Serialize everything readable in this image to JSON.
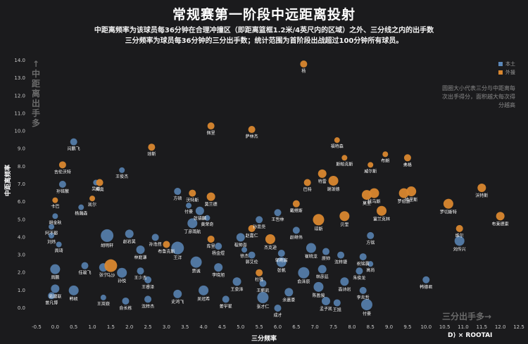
{
  "title": "常规赛第一阶段中远距离投射",
  "subtitle_line1": "中距离频率为该球员每36分钟在合理冲撞区（即距离篮框1.2米/4英尺内的区域）之外、三分线之内的出手数",
  "subtitle_line2": "三分频率为球员每36分钟的三分出手数；统计范围为首阶段出战超过100分钟所有球员。",
  "note": "圆圈大小代表三分与中距离每次出手得分，面积越大每次得分越高",
  "y_arrow": "↑中距离出手多",
  "x_arrow": "三分出手多→",
  "brand": "D⟩ × ROOTAI",
  "colors": {
    "local": "#5b87b8",
    "foreign": "#d9872f",
    "background": "#1b1b1d"
  },
  "chart_data": {
    "type": "scatter",
    "title": "常规赛第一阶段中远距离投射",
    "xlabel": "三分频率",
    "ylabel": "中距离频率",
    "xlim": [
      -0.5,
      12.5
    ],
    "ylim": [
      0,
      14
    ],
    "x_ticks": [
      "-0.5",
      "0.0",
      "0.5",
      "1.0",
      "1.5",
      "2.0",
      "2.5",
      "3.0",
      "3.5",
      "4.0",
      "4.5",
      "5.0",
      "5.5",
      "6.0",
      "6.5",
      "7.0",
      "7.5",
      "8.0",
      "8.5",
      "9.0",
      "9.5",
      "10.0",
      "10.5",
      "11.0",
      "11.5",
      "12.0",
      "12.5"
    ],
    "y_ticks": [
      "0.0",
      "1.0",
      "2.0",
      "3.0",
      "4.0",
      "5.0",
      "6.0",
      "7.0",
      "8.0",
      "9.0",
      "10.0",
      "11.0",
      "12.0",
      "13.0",
      "14.0"
    ],
    "legend_position": "top-right",
    "series": [
      {
        "name": "本土",
        "color": "#5b87b8",
        "points": [
          {
            "label": "闫鹏飞",
            "x": 0.5,
            "y": 9.4,
            "s": 5
          },
          {
            "label": "王俊杰",
            "x": 1.8,
            "y": 7.8,
            "s": 4
          },
          {
            "label": "孙铭徽",
            "x": 0.2,
            "y": 7.0,
            "s": 5
          },
          {
            "label": "吴前",
            "x": 1.1,
            "y": 7.1,
            "s": 4
          },
          {
            "label": "杨瀚森",
            "x": 0.7,
            "y": 5.7,
            "s": 4
          },
          {
            "label": "胡金秋",
            "x": 0.0,
            "y": 5.2,
            "s": 4
          },
          {
            "label": "阿不都",
            "x": -0.1,
            "y": 4.6,
            "s": 4
          },
          {
            "label": "刘炜",
            "x": -0.1,
            "y": 4.1,
            "s": 4
          },
          {
            "label": "周琦",
            "x": 0.1,
            "y": 3.6,
            "s": 4
          },
          {
            "label": "胡明轩",
            "x": 1.4,
            "y": 4.1,
            "s": 9
          },
          {
            "label": "赵岩昊",
            "x": 2.0,
            "y": 4.2,
            "s": 6
          },
          {
            "label": "孙浩然",
            "x": 2.7,
            "y": 4.0,
            "s": 5
          },
          {
            "label": "方硕",
            "x": 3.3,
            "y": 6.6,
            "s": 5
          },
          {
            "label": "付豪",
            "x": 3.6,
            "y": 5.8,
            "s": 4
          },
          {
            "label": "张镇麟",
            "x": 3.9,
            "y": 5.5,
            "s": 6
          },
          {
            "label": "黄荣奇",
            "x": 4.1,
            "y": 5.1,
            "s": 4
          },
          {
            "label": "丁彦雨航",
            "x": 3.7,
            "y": 4.8,
            "s": 7
          },
          {
            "label": "孙思尧",
            "x": 5.5,
            "y": 5.0,
            "s": 5
          },
          {
            "label": "程帅澎",
            "x": 5.0,
            "y": 4.0,
            "s": 6
          },
          {
            "label": "王哲林",
            "x": 6.0,
            "y": 5.4,
            "s": 5
          },
          {
            "label": "赵继伟",
            "x": 6.5,
            "y": 4.4,
            "s": 5
          },
          {
            "label": "徐杰",
            "x": 5.1,
            "y": 3.3,
            "s": 4
          },
          {
            "label": "郭艾伦",
            "x": 5.3,
            "y": 3.0,
            "s": 5
          },
          {
            "label": "邹雨宸",
            "x": 6.1,
            "y": 3.1,
            "s": 5
          },
          {
            "label": "崔晓龙",
            "x": 6.9,
            "y": 3.4,
            "s": 7
          },
          {
            "label": "原帅",
            "x": 7.3,
            "y": 3.2,
            "s": 5
          },
          {
            "label": "沈梓捷",
            "x": 7.7,
            "y": 3.0,
            "s": 5
          },
          {
            "label": "祝铭震",
            "x": 8.3,
            "y": 2.9,
            "s": 5
          },
          {
            "label": "方铭",
            "x": 8.5,
            "y": 4.1,
            "s": 5
          },
          {
            "label": "高尚",
            "x": 8.5,
            "y": 2.5,
            "s": 4
          },
          {
            "label": "朱俊龙",
            "x": 8.2,
            "y": 2.1,
            "s": 5
          },
          {
            "label": "高诗岩",
            "x": 7.8,
            "y": 1.5,
            "s": 6
          },
          {
            "label": "李炎哲",
            "x": 8.3,
            "y": 1.0,
            "s": 5
          },
          {
            "label": "韩德君",
            "x": 10.0,
            "y": 1.6,
            "s": 5
          },
          {
            "label": "刘传兴",
            "x": 10.9,
            "y": 3.8,
            "s": 7
          },
          {
            "label": "张宁",
            "x": 1.3,
            "y": 2.3,
            "s": 6
          },
          {
            "label": "孙悦",
            "x": 1.8,
            "y": 2.0,
            "s": 7
          },
          {
            "label": "王少杰",
            "x": 2.3,
            "y": 2.1,
            "s": 5
          },
          {
            "label": "王睿泽",
            "x": 2.5,
            "y": 1.6,
            "s": 5
          },
          {
            "label": "任骏飞",
            "x": 0.8,
            "y": 2.4,
            "s": 5
          },
          {
            "label": "周鹏",
            "x": 0.0,
            "y": 2.2,
            "s": 7
          },
          {
            "label": "易建联",
            "x": 0.0,
            "y": 1.1,
            "s": 6
          },
          {
            "label": "韩硕",
            "x": 0.5,
            "y": 1.0,
            "s": 7
          },
          {
            "label": "曾凡博",
            "x": -0.1,
            "y": 0.7,
            "s": 5
          },
          {
            "label": "王岚嵚",
            "x": 1.3,
            "y": 0.6,
            "s": 4
          },
          {
            "label": "俞长栋",
            "x": 1.9,
            "y": 0.4,
            "s": 5
          },
          {
            "label": "沈梓杰",
            "x": 2.5,
            "y": 0.5,
            "s": 5
          },
          {
            "label": "史鸿飞",
            "x": 3.3,
            "y": 0.8,
            "s": 6
          },
          {
            "label": "贾诚",
            "x": 3.8,
            "y": 2.6,
            "s": 8
          },
          {
            "label": "李晓旭",
            "x": 4.4,
            "y": 2.3,
            "s": 6
          },
          {
            "label": "王泉泽",
            "x": 4.9,
            "y": 1.5,
            "s": 6
          },
          {
            "label": "王薪凯",
            "x": 5.6,
            "y": 1.4,
            "s": 5
          },
          {
            "label": "张帆",
            "x": 6.1,
            "y": 2.6,
            "s": 7
          },
          {
            "label": "俞泽辰",
            "x": 6.7,
            "y": 2.0,
            "s": 8
          },
          {
            "label": "林彦廷",
            "x": 7.2,
            "y": 2.2,
            "s": 6
          },
          {
            "label": "陈盈骏",
            "x": 7.1,
            "y": 1.2,
            "s": 7
          },
          {
            "label": "余嘉豪",
            "x": 6.3,
            "y": 0.9,
            "s": 6
          },
          {
            "label": "张才仁",
            "x": 5.6,
            "y": 0.6,
            "s": 8
          },
          {
            "label": "吴冠希",
            "x": 4.0,
            "y": 1.0,
            "s": 7
          },
          {
            "label": "姜宇星",
            "x": 4.6,
            "y": 0.5,
            "s": 5
          },
          {
            "label": "孟子凯",
            "x": 7.3,
            "y": 0.4,
            "s": 6
          },
          {
            "label": "王旭",
            "x": 7.6,
            "y": 0.3,
            "s": 5
          },
          {
            "label": "付豪2",
            "x": 8.4,
            "y": 0.2,
            "s": 8
          },
          {
            "label": "成才",
            "x": 6.0,
            "y": 0.0,
            "s": 5
          },
          {
            "label": "王洋",
            "x": 3.3,
            "y": 3.4,
            "s": 9
          },
          {
            "label": "林庭谦",
            "x": 2.3,
            "y": 3.3,
            "s": 6
          },
          {
            "label": "杨金煜",
            "x": 4.4,
            "y": 3.5,
            "s": 5
          }
        ]
      },
      {
        "name": "外援",
        "color": "#d9872f",
        "points": [
          {
            "label": "杨",
            "x": 6.7,
            "y": 13.8,
            "s": 5
          },
          {
            "label": "佩里",
            "x": 4.2,
            "y": 10.3,
            "s": 5
          },
          {
            "label": "萨林杰",
            "x": 5.3,
            "y": 10.1,
            "s": 5
          },
          {
            "label": "琼斯",
            "x": 2.6,
            "y": 9.1,
            "s": 5
          },
          {
            "label": "威尔斯",
            "x": 8.5,
            "y": 8.1,
            "s": 4
          },
          {
            "label": "福特森",
            "x": 7.6,
            "y": 9.5,
            "s": 4
          },
          {
            "label": "弗格",
            "x": 9.5,
            "y": 8.5,
            "s": 5
          },
          {
            "label": "布朗",
            "x": 8.9,
            "y": 8.7,
            "s": 4
          },
          {
            "label": "斯帕克斯",
            "x": 7.8,
            "y": 8.5,
            "s": 4
          },
          {
            "label": "吉伦沃特",
            "x": 0.2,
            "y": 8.1,
            "s": 5
          },
          {
            "label": "梅奥",
            "x": 1.2,
            "y": 7.1,
            "s": 5
          },
          {
            "label": "特雷",
            "x": 7.2,
            "y": 7.6,
            "s": 6
          },
          {
            "label": "巴特",
            "x": 6.8,
            "y": 7.1,
            "s": 5
          },
          {
            "label": "谢泼德",
            "x": 7.5,
            "y": 7.2,
            "s": 7
          },
          {
            "label": "沃特斯",
            "x": 3.7,
            "y": 6.5,
            "s": 5
          },
          {
            "label": "莫兰德",
            "x": 4.2,
            "y": 6.3,
            "s": 6
          },
          {
            "label": "戴维斯",
            "x": 6.5,
            "y": 5.9,
            "s": 5
          },
          {
            "label": "托马斯",
            "x": 8.6,
            "y": 6.5,
            "s": 7
          },
          {
            "label": "莫里",
            "x": 8.4,
            "y": 6.4,
            "s": 7
          },
          {
            "label": "罗伯逊",
            "x": 9.4,
            "y": 6.5,
            "s": 7
          },
          {
            "label": "哈里斯",
            "x": 9.6,
            "y": 6.6,
            "s": 7
          },
          {
            "label": "沃特斯2",
            "x": 11.5,
            "y": 6.8,
            "s": 6
          },
          {
            "label": "罗切斯特",
            "x": 10.6,
            "y": 5.9,
            "s": 7
          },
          {
            "label": "富兰克林",
            "x": 8.8,
            "y": 5.5,
            "s": 7
          },
          {
            "label": "贝里",
            "x": 7.8,
            "y": 5.2,
            "s": 7
          },
          {
            "label": "琼斯2",
            "x": 7.1,
            "y": 5.0,
            "s": 8
          },
          {
            "label": "布莱德索",
            "x": 12.0,
            "y": 5.2,
            "s": 6
          },
          {
            "label": "维尔",
            "x": 10.9,
            "y": 4.5,
            "s": 5
          },
          {
            "label": "赵嘉仁",
            "x": 5.3,
            "y": 4.5,
            "s": 5
          },
          {
            "label": "库里",
            "x": 4.2,
            "y": 3.9,
            "s": 5
          },
          {
            "label": "杰克逊",
            "x": 5.8,
            "y": 3.9,
            "s": 7
          },
          {
            "label": "布鲁克斯",
            "x": 3.0,
            "y": 3.6,
            "s": 5
          },
          {
            "label": "凯尔",
            "x": 1.0,
            "y": 6.2,
            "s": 4
          },
          {
            "label": "卡巴",
            "x": 0.0,
            "y": 6.1,
            "s": 4
          },
          {
            "label": "马沙",
            "x": 1.5,
            "y": 2.4,
            "s": 9
          },
          {
            "label": "杜锋",
            "x": 5.5,
            "y": 2.0,
            "s": 5
          }
        ]
      }
    ]
  }
}
